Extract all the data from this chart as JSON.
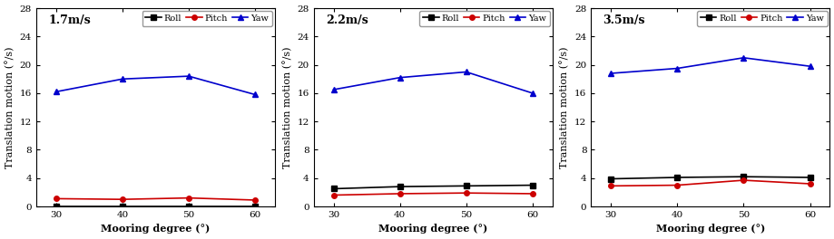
{
  "panels": [
    {
      "label": "1.7m/s",
      "x": [
        30,
        40,
        50,
        60
      ],
      "roll": [
        0.05,
        0.05,
        0.05,
        0.05
      ],
      "pitch": [
        1.1,
        1.0,
        1.2,
        0.9
      ],
      "yaw": [
        16.2,
        18.0,
        18.4,
        15.8
      ]
    },
    {
      "label": "2.2m/s",
      "x": [
        30,
        40,
        50,
        60
      ],
      "roll": [
        2.5,
        2.8,
        2.9,
        3.0
      ],
      "pitch": [
        1.6,
        1.8,
        1.9,
        1.8
      ],
      "yaw": [
        16.5,
        18.2,
        19.0,
        16.0
      ]
    },
    {
      "label": "3.5m/s",
      "x": [
        30,
        40,
        50,
        60
      ],
      "roll": [
        3.9,
        4.1,
        4.2,
        4.1
      ],
      "pitch": [
        2.9,
        3.0,
        3.7,
        3.2
      ],
      "yaw": [
        18.8,
        19.5,
        21.0,
        19.8
      ]
    }
  ],
  "roll_color": "#000000",
  "pitch_color": "#cc0000",
  "yaw_color": "#0000cc",
  "xlabel": "Mooring degree (°)",
  "ylabel": "Translation motion (°/s)",
  "ylim": [
    0,
    28
  ],
  "yticks": [
    0,
    4,
    8,
    12,
    16,
    20,
    24,
    28
  ],
  "xticks": [
    30,
    40,
    50,
    60
  ],
  "legend_labels": [
    "Roll",
    "Pitch",
    "Yaw"
  ],
  "marker_roll": "s",
  "marker_pitch": "o",
  "marker_yaw": "^",
  "linewidth": 1.2,
  "markersize": 4,
  "label_fontsize": 8,
  "tick_fontsize": 7.5,
  "legend_fontsize": 7,
  "panel_label_fontsize": 9
}
